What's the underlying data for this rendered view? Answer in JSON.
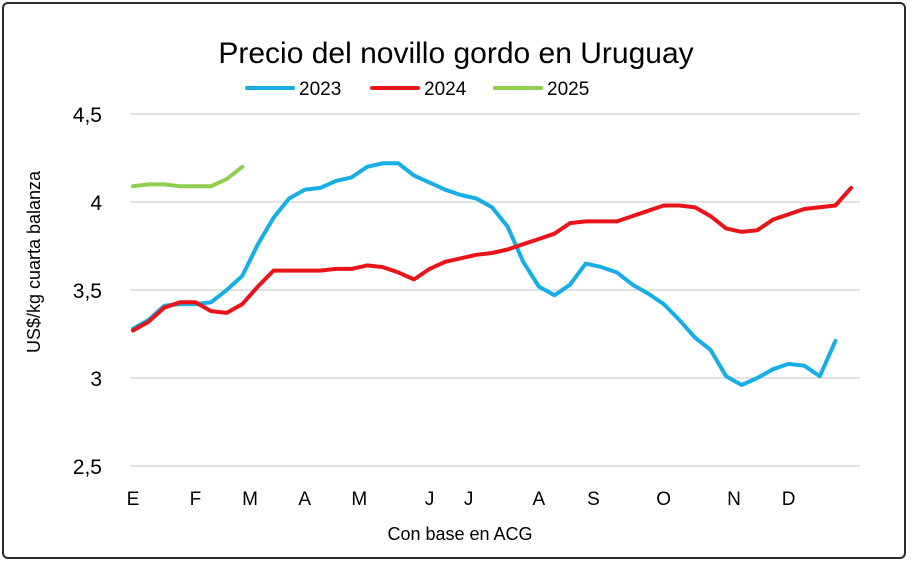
{
  "chart_data": {
    "type": "line",
    "title": "Precio del novillo gordo en Uruguay",
    "xlabel": "Con base en ACG",
    "ylabel": "US$/kg cuarta balanza",
    "ylim": [
      2.5,
      4.5
    ],
    "y_ticks": [
      "2,5",
      "3",
      "3,5",
      "4",
      "4,5"
    ],
    "y_tick_values": [
      2.5,
      3,
      3.5,
      4,
      4.5
    ],
    "x_tick_labels": [
      "E",
      "F",
      "M",
      "A",
      "M",
      "J",
      "J",
      "A",
      "S",
      "O",
      "N",
      "D"
    ],
    "x_tick_weeks": [
      0,
      4,
      7.5,
      11,
      14.5,
      19,
      21.5,
      26,
      29.5,
      34,
      38.5,
      42
    ],
    "x_range_weeks": [
      0,
      46
    ],
    "grid": true,
    "legend_position": "top-center",
    "series": [
      {
        "name": "2023",
        "color": "#17aee6",
        "x": [
          0,
          1,
          2,
          3,
          4,
          5,
          6,
          7,
          8,
          9,
          10,
          11,
          12,
          13,
          14,
          15,
          16,
          17,
          18,
          19,
          20,
          21,
          22,
          23,
          24,
          25,
          26,
          27,
          28,
          29,
          30,
          31,
          32,
          33,
          34,
          35,
          36,
          37,
          38,
          39,
          40,
          41,
          42,
          43,
          44,
          45
        ],
        "values": [
          3.28,
          3.33,
          3.41,
          3.42,
          3.42,
          3.43,
          3.5,
          3.58,
          3.76,
          3.91,
          4.02,
          4.07,
          4.08,
          4.12,
          4.14,
          4.2,
          4.22,
          4.22,
          4.15,
          4.11,
          4.07,
          4.04,
          4.02,
          3.97,
          3.86,
          3.66,
          3.52,
          3.47,
          3.53,
          3.65,
          3.63,
          3.6,
          3.53,
          3.48,
          3.42,
          3.33,
          3.23,
          3.16,
          3.01,
          2.96,
          3.0,
          3.05,
          3.08,
          3.07,
          3.01,
          3.21
        ]
      },
      {
        "name": "2024",
        "color": "#e8141a",
        "x": [
          0,
          1,
          2,
          3,
          4,
          5,
          6,
          7,
          8,
          9,
          10,
          11,
          12,
          13,
          14,
          15,
          16,
          17,
          18,
          19,
          20,
          21,
          22,
          23,
          24,
          25,
          26,
          27,
          28,
          29,
          30,
          31,
          32,
          33,
          34,
          35,
          36,
          37,
          38,
          39,
          40,
          41,
          42,
          43,
          44,
          45,
          46
        ],
        "values": [
          3.27,
          3.32,
          3.4,
          3.43,
          3.43,
          3.38,
          3.37,
          3.42,
          3.52,
          3.61,
          3.61,
          3.61,
          3.61,
          3.62,
          3.62,
          3.64,
          3.63,
          3.6,
          3.56,
          3.62,
          3.66,
          3.68,
          3.7,
          3.71,
          3.73,
          3.76,
          3.79,
          3.82,
          3.88,
          3.89,
          3.89,
          3.89,
          3.92,
          3.95,
          3.98,
          3.98,
          3.97,
          3.92,
          3.85,
          3.83,
          3.84,
          3.9,
          3.93,
          3.96,
          3.97,
          3.98,
          4.08
        ]
      },
      {
        "name": "2025",
        "color": "#8fcf4f",
        "x": [
          0,
          1,
          2,
          3,
          4,
          5,
          6,
          7
        ],
        "values": [
          4.09,
          4.1,
          4.1,
          4.09,
          4.09,
          4.09,
          4.13,
          4.2
        ]
      }
    ]
  }
}
